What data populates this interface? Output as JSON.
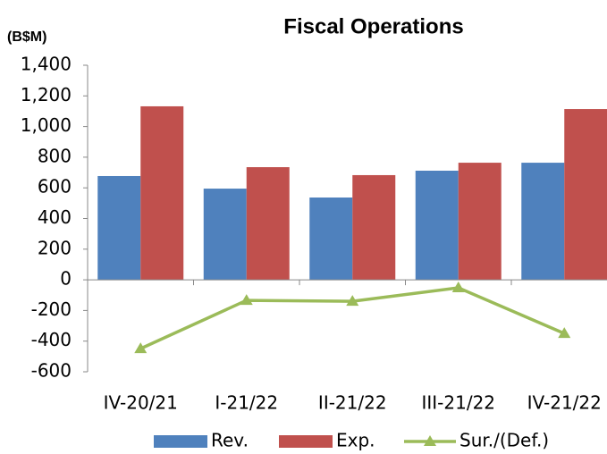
{
  "chart_data": {
    "type": "bar",
    "title": "Fiscal Operations",
    "y_label": "(B$M)",
    "categories": [
      "IV-20/21",
      "I-21/22",
      "II-21/22",
      "III-21/22",
      "IV-21/22"
    ],
    "series": [
      {
        "name": "Rev.",
        "type": "bar",
        "color": "#4f81bd",
        "values": [
          677,
          595,
          537,
          712,
          764
        ]
      },
      {
        "name": "Exp.",
        "type": "bar",
        "color": "#c0504d",
        "values": [
          1132,
          735,
          683,
          764,
          1114
        ]
      },
      {
        "name": "Sur./(Def.)",
        "type": "line",
        "color": "#9bbb59",
        "values": [
          -449,
          -134,
          -140,
          -52,
          -350
        ]
      }
    ],
    "ylim": [
      -600,
      1400
    ],
    "yticks": [
      -600,
      -400,
      -200,
      0,
      200,
      400,
      600,
      800,
      {
        "value": 1000,
        "label": "1,000"
      },
      {
        "value": 1200,
        "label": "1,200"
      },
      {
        "value": 1400,
        "label": "1,400"
      }
    ],
    "grid": false,
    "legend": "bottom"
  }
}
